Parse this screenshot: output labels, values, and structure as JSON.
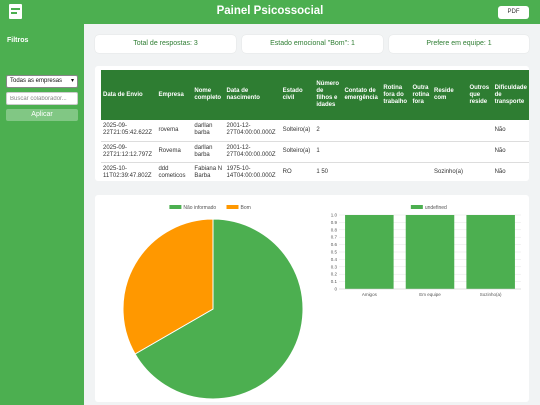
{
  "header": {
    "title": "Painel Psicossocial",
    "pdf_label": "PDF"
  },
  "sidebar": {
    "filters_title": "Filtros",
    "company_select": "Todas as empresas",
    "search_placeholder": "Buscar colaborador...",
    "apply_label": "Aplicar"
  },
  "cards": [
    "Total de respostas: 3",
    "Estado emocional \"Bom\": 1",
    "Prefere em equipe: 1"
  ],
  "table": {
    "headers": [
      "Data de Envio",
      "Empresa",
      "Nome completo",
      "Data de nascimento",
      "Estado civil",
      "Número de filhos e idades",
      "Contato de emergência",
      "Rotina fora do trabalho",
      "Outra rotina fora",
      "Reside com",
      "Outros que reside",
      "Dificuldade de transporte"
    ],
    "rows": [
      [
        "2025-09-22T21:05:42.622Z",
        "rovema",
        "darllan barba",
        "2001-12-27T04:00:00.000Z",
        "Solteiro(a)",
        "2",
        "",
        "",
        "",
        "",
        "",
        "Não"
      ],
      [
        "2025-09-22T21:12:12.797Z",
        "Rovema",
        "darllan barba",
        "2001-12-27T04:00:00.000Z",
        "Solteiro(a)",
        "1",
        "",
        "",
        "",
        "",
        "",
        "Não"
      ],
      [
        "2025-10-11T02:39:47.802Z",
        "ddd cometicos",
        "Fabiana N Barba",
        "1975-10-14T04:00:00.000Z",
        "RO",
        "1 50",
        "",
        "",
        "",
        "Sozinho(a)",
        "",
        "Não"
      ]
    ]
  },
  "chart_data": [
    {
      "type": "pie",
      "categories": [
        "Não informado",
        "Bom"
      ],
      "values": [
        2,
        1
      ],
      "colors": [
        "#4caf50",
        "#ff9800"
      ],
      "legend": "top"
    },
    {
      "type": "bar",
      "categories": [
        "Amigos",
        "Em equipe",
        "Sozinho(a)"
      ],
      "series": [
        {
          "name": "undefined",
          "values": [
            1,
            1,
            1
          ]
        }
      ],
      "colors": [
        "#4caf50"
      ],
      "ylim": [
        0,
        1
      ],
      "yticks": [
        "0",
        "0.1",
        "0.2",
        "0.3",
        "0.4",
        "0.5",
        "0.6",
        "0.7",
        "0.8",
        "0.9",
        "1.0"
      ],
      "legend": "top"
    }
  ]
}
